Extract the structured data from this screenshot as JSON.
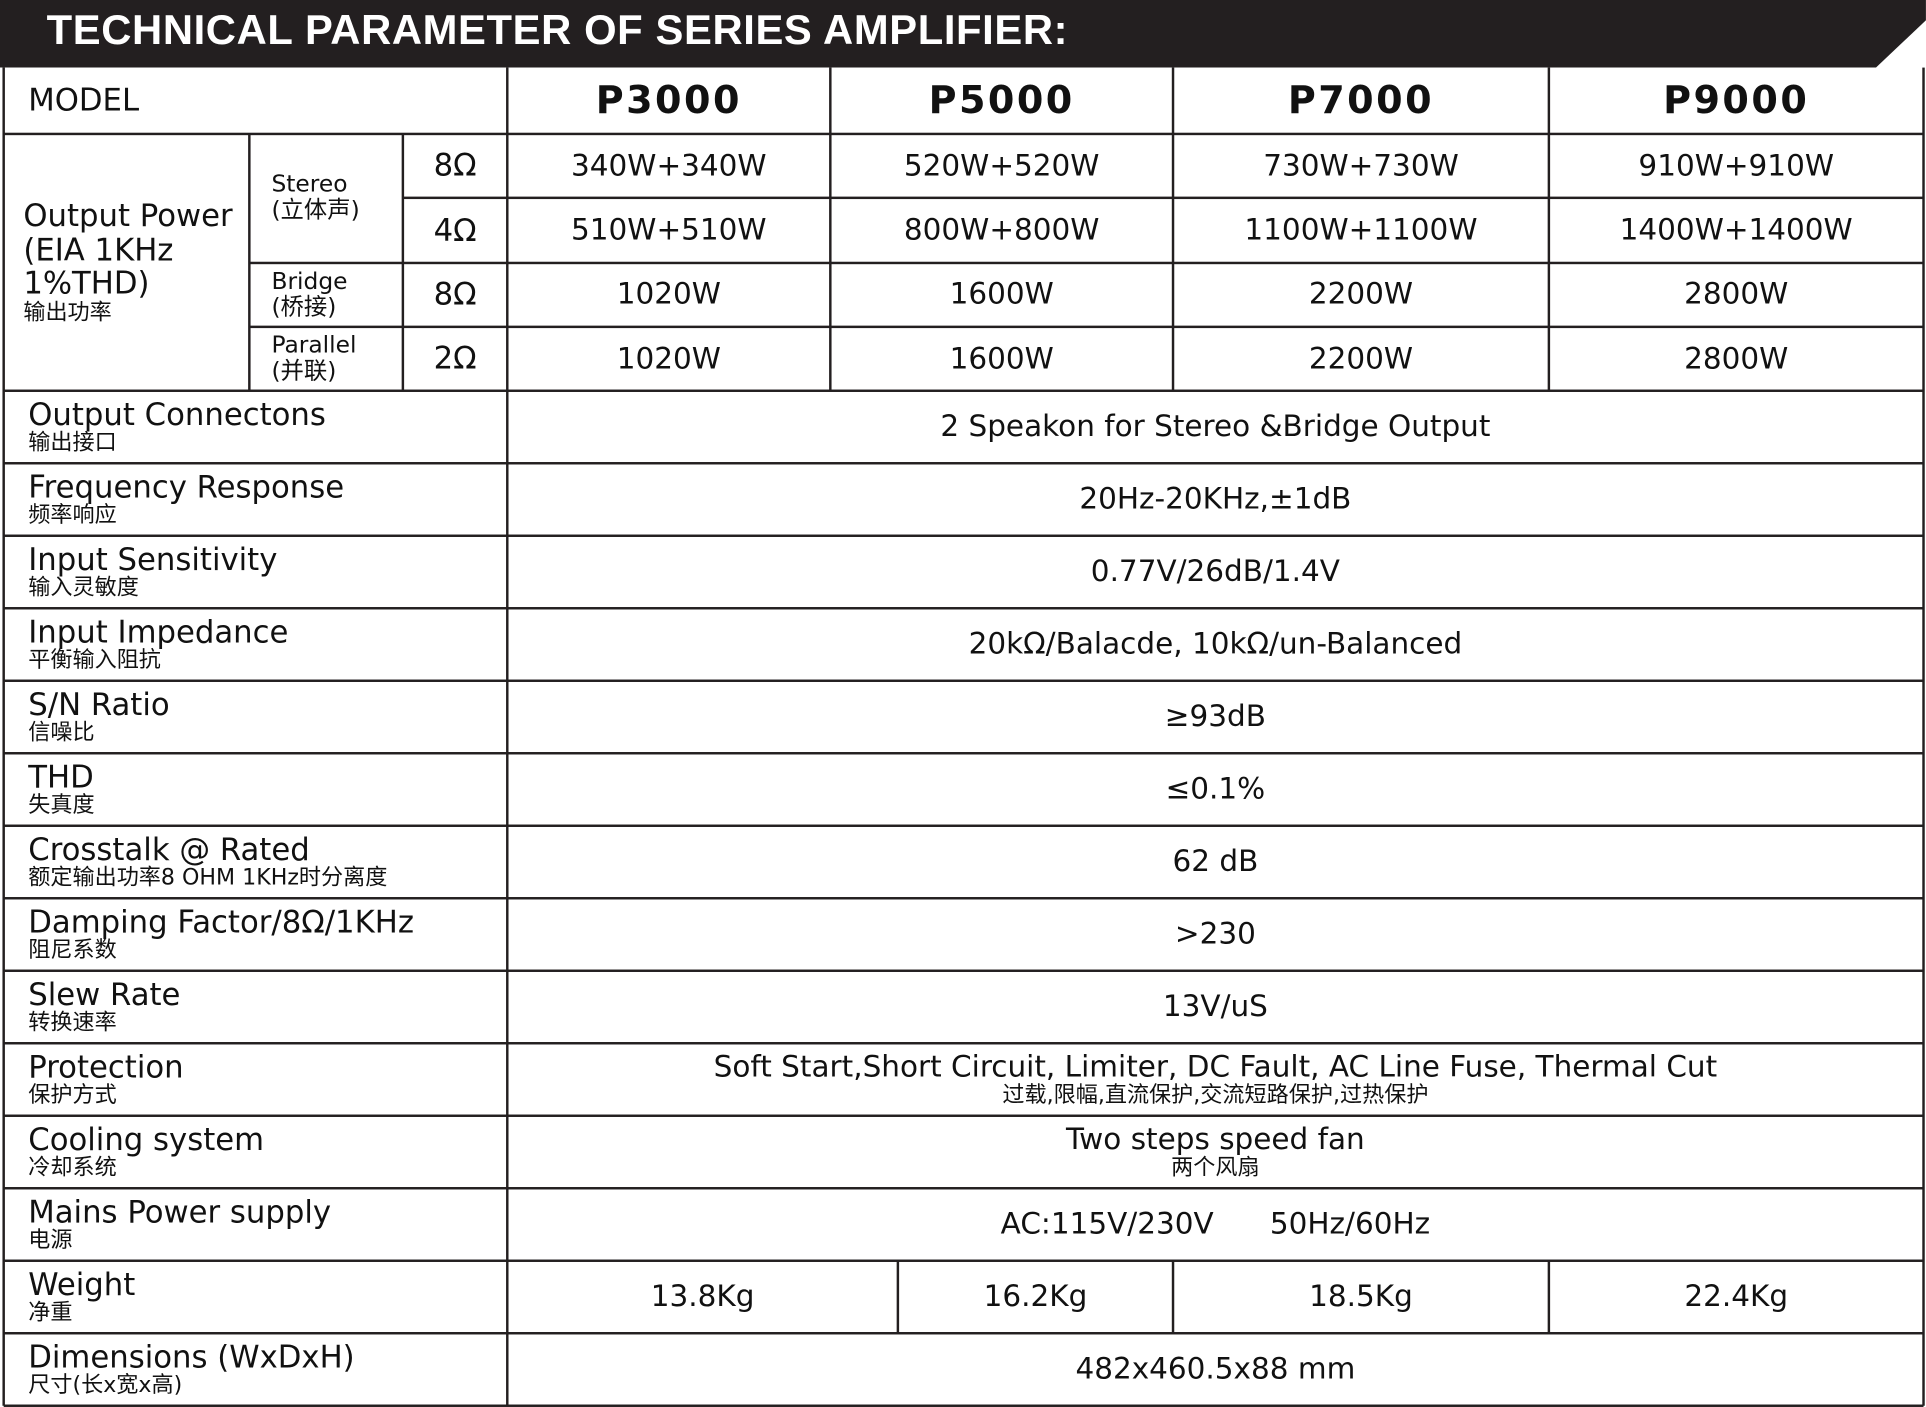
{
  "header": {
    "title": "TECHNICAL PARAMETER OF SERIES AMPLIFIER:"
  },
  "table": {
    "model_label": "MODEL",
    "models": [
      "P3000",
      "P5000",
      "P7000",
      "P9000"
    ],
    "output_power": {
      "label": [
        "Output Power",
        "(EIA 1KHz",
        "1%THD)",
        "输出功率"
      ],
      "modes": [
        {
          "name": [
            "Stereo",
            "(立体声)"
          ],
          "rows": [
            {
              "load": "8Ω",
              "values": [
                "340W+340W",
                "520W+520W",
                "730W+730W",
                "910W+910W"
              ]
            },
            {
              "load": "4Ω",
              "values": [
                "510W+510W",
                "800W+800W",
                "1100W+1100W",
                "1400W+1400W"
              ]
            }
          ]
        },
        {
          "name": [
            "Bridge",
            "(桥接)"
          ],
          "rows": [
            {
              "load": "8Ω",
              "values": [
                "1020W",
                "1600W",
                "2200W",
                "2800W"
              ]
            }
          ]
        },
        {
          "name": [
            "Parallel",
            "(并联)"
          ],
          "rows": [
            {
              "load": "2Ω",
              "values": [
                "1020W",
                "1600W",
                "2200W",
                "2800W"
              ]
            }
          ]
        }
      ]
    },
    "specs": [
      {
        "name": "Output Connectons",
        "name_zh": "输出接口",
        "value": "2 Speakon for Stereo &Bridge Output"
      },
      {
        "name": "Frequency Response",
        "name_zh": "频率响应",
        "value": "20Hz-20KHz,±1dB"
      },
      {
        "name": "Input Sensitivity",
        "name_zh": "输入灵敏度",
        "value": "0.77V/26dB/1.4V"
      },
      {
        "name": "Input Impedance",
        "name_zh": "平衡输入阻抗",
        "value": "20kΩ/Balacde, 10kΩ/un-Balanced"
      },
      {
        "name": "S/N Ratio",
        "name_zh": "信噪比",
        "value": "≥93dB"
      },
      {
        "name": "THD",
        "name_zh": "失真度",
        "value": "≤0.1%"
      },
      {
        "name": "Crosstalk @ Rated",
        "name_zh": "额定输出功率8 OHM 1KHz时分离度",
        "value": "62 dB"
      },
      {
        "name": "Damping Factor/8Ω/1KHz",
        "name_zh": "阻尼系数",
        "value": ">230"
      },
      {
        "name": "Slew Rate",
        "name_zh": "转换速率",
        "value": "13V/uS"
      },
      {
        "name": "Protection",
        "name_zh": "保护方式",
        "value": "Soft Start,Short Circuit, Limiter, DC Fault, AC Line Fuse, Thermal Cut",
        "value_zh": "过载,限幅,直流保护,交流短路保护,过热保护"
      },
      {
        "name": "Cooling system",
        "name_zh": "冷却系统",
        "value": "Two steps speed fan",
        "value_zh": "两个风扇"
      },
      {
        "name": "Mains Power supply",
        "name_zh": "电源",
        "value": "AC:115V/230V      50Hz/60Hz"
      },
      {
        "name": "Weight",
        "name_zh": "净重",
        "values": [
          "13.8Kg",
          "16.2Kg",
          "18.5Kg",
          "22.4Kg"
        ]
      },
      {
        "name": "Dimensions (WxDxH)",
        "name_zh": "尺寸(长x宽x高)",
        "value": "482x460.5x88 mm"
      }
    ]
  }
}
